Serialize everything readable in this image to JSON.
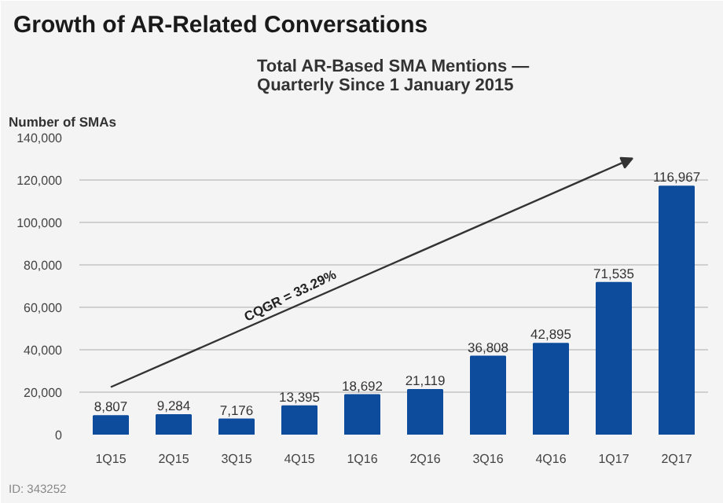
{
  "chart_data": {
    "type": "bar",
    "title": "Growth of AR-Related Conversations",
    "subtitle": "Total AR-Based SMA Mentions —\nQuarterly Since 1 January 2015",
    "ylabel": "Number of SMAs",
    "categories": [
      "1Q15",
      "2Q15",
      "3Q15",
      "4Q15",
      "1Q16",
      "2Q16",
      "3Q16",
      "4Q16",
      "1Q17",
      "2Q17"
    ],
    "values": [
      8807,
      9284,
      7176,
      13395,
      18692,
      21119,
      36808,
      42895,
      71535,
      116967
    ],
    "value_labels": [
      "8,807",
      "9,284",
      "7,176",
      "13,395",
      "18,692",
      "21,119",
      "36,808",
      "42,895",
      "71,535",
      "116,967"
    ],
    "color": "#0d4c9c",
    "ylim": [
      0,
      140000
    ],
    "yticks": [
      {
        "value": 0,
        "label": "0"
      },
      {
        "value": 20000,
        "label": "20,000"
      },
      {
        "value": 40000,
        "label": "40,000"
      },
      {
        "value": 60000,
        "label": "60,000"
      },
      {
        "value": 80000,
        "label": "80,000"
      },
      {
        "value": 100000,
        "label": "100,000"
      },
      {
        "value": 120000,
        "label": "120,000"
      },
      {
        "value": 140000,
        "label": "140,000"
      }
    ],
    "grid": "y",
    "annotations": [
      "CQGR = 33.29%",
      "ID: 343252"
    ]
  }
}
